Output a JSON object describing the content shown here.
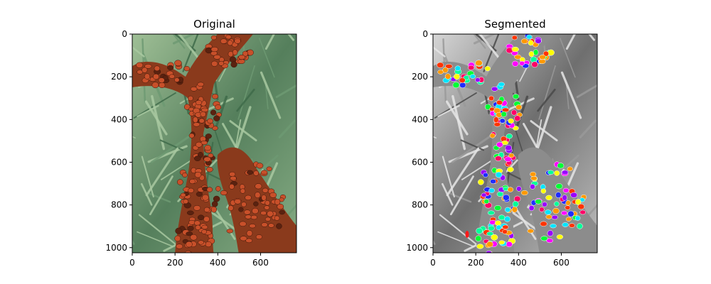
{
  "figure": {
    "background": "#ffffff",
    "panels": [
      {
        "title": "Original",
        "image": "photo of a tree trunk covered in clustered red-orange ladybugs with green grass behind",
        "x_ticks": [
          "0",
          "200",
          "400",
          "600"
        ],
        "y_ticks": [
          "0",
          "200",
          "400",
          "600",
          "800",
          "1000"
        ],
        "palette": {
          "grass_light": "#a9c9a1",
          "grass_dark": "#3f6b4a",
          "grass_mid": "#6e9a73",
          "trunk": "#8a3a1c",
          "beetle": "#c8502a",
          "beetle_dark": "#5a2210",
          "bark": "#d8c8b8"
        }
      },
      {
        "title": "Segmented",
        "image": "grayscale version of the same photo with each ladybug overlaid by a random bright color",
        "x_ticks": [
          "0",
          "200",
          "400",
          "600"
        ],
        "y_ticks": [
          "0",
          "200",
          "400",
          "600",
          "800",
          "1000"
        ],
        "palette": {
          "gray_light": "#e6e6e6",
          "gray_dark": "#4a4a4a",
          "gray_mid": "#9a9a9a",
          "trunk_gray": "#8c8c8c",
          "segment_colors": [
            "#ff00ff",
            "#00ff33",
            "#1f2cff",
            "#ffff00",
            "#00e5ff",
            "#ff3300",
            "#ff9900",
            "#9900ff",
            "#00ff99",
            "#ff0066"
          ]
        }
      }
    ]
  }
}
